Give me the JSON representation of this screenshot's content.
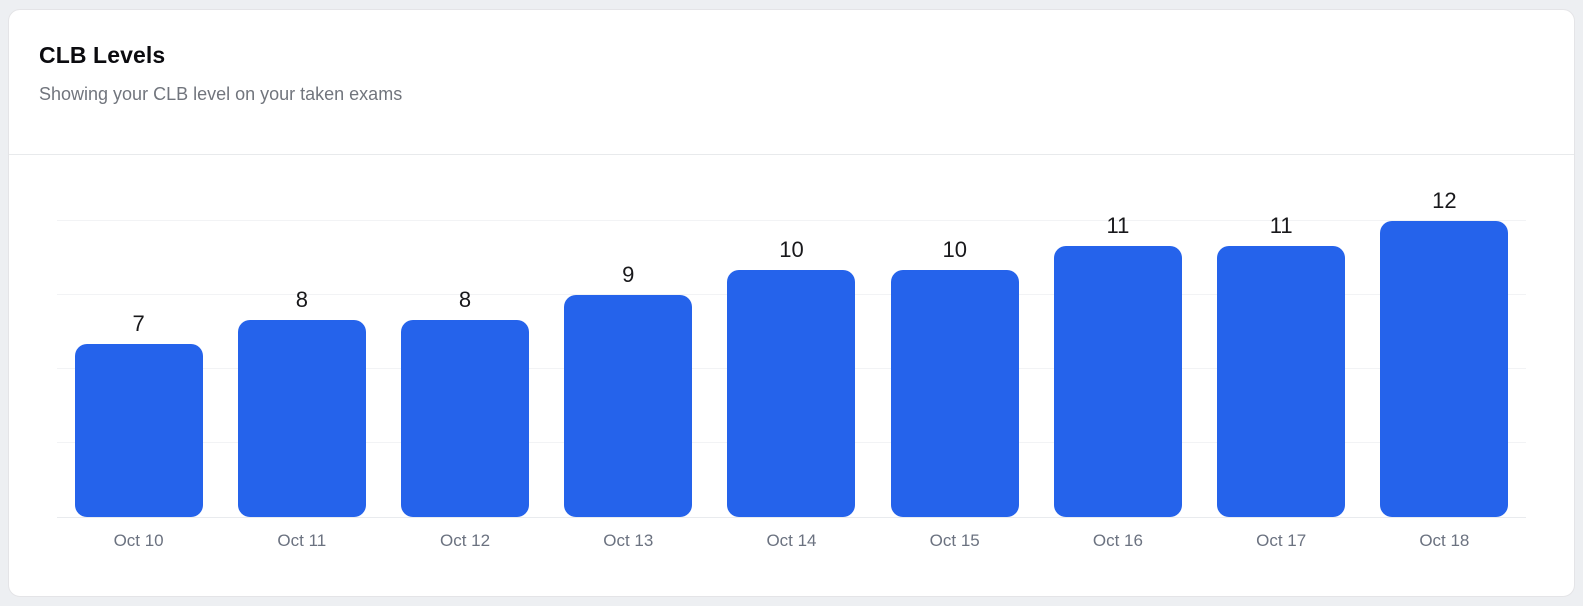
{
  "chart_data": {
    "type": "bar",
    "title": "CLB Levels",
    "subtitle": "Showing your CLB level on your taken exams",
    "categories": [
      "Oct 10",
      "Oct 11",
      "Oct 12",
      "Oct 13",
      "Oct 14",
      "Oct 15",
      "Oct 16",
      "Oct 17",
      "Oct 18"
    ],
    "values": [
      7,
      8,
      8,
      9,
      10,
      10,
      11,
      11,
      12
    ],
    "xlabel": "",
    "ylabel": "",
    "ylim": [
      0,
      12
    ],
    "yticks": [
      3,
      6,
      9,
      12
    ],
    "y_axis_labels_visible": false,
    "grid": "horizontal",
    "legend": "none",
    "value_labels": "above-bars",
    "bar_color": "#2563eb"
  },
  "colors": {
    "page_bg": "#edeff2",
    "card_bg": "#ffffff",
    "card_border": "#e4e4e7",
    "header_divider": "#e8eaec",
    "gridline": "#f2f3f5",
    "axis_line": "#e9ebee",
    "title": "#0b0b0f",
    "subtitle": "#71757d",
    "tick_label": "#6b7280",
    "value_label": "#18181b",
    "bar": "#2563eb"
  }
}
